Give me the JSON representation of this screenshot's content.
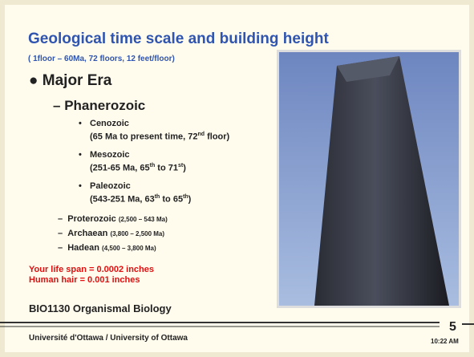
{
  "slide": {
    "title": "Geological time scale and building height",
    "subtitle": "( 1floor – 60Ma, 72 floors, 12 feet/floor)",
    "heading": "Major Era",
    "eon": "Phanerozoic",
    "eras": [
      {
        "name": "Cenozoic",
        "detail": [
          "(65 Ma to present time, 72",
          "nd",
          " floor)"
        ]
      },
      {
        "name": "Mesozoic",
        "detail": [
          "(251-65 Ma, 65",
          "th",
          " to 71",
          "st",
          ")"
        ]
      },
      {
        "name": "Paleozoic",
        "detail": [
          "(543-251 Ma, 63",
          "th",
          " to 65",
          "th",
          ")"
        ]
      }
    ],
    "other_eons": [
      {
        "name": "Proterozoic",
        "range": "(2,500 – 543 Ma)"
      },
      {
        "name": "Archaean",
        "range": "(3,800 – 2,500 Ma)"
      },
      {
        "name": "Hadean",
        "range": "(4,500 – 3,800 Ma)"
      }
    ],
    "notes": [
      "Your life span = 0.0002 inches",
      "Human hair = 0.001 inches"
    ],
    "course": "BIO1130 Organismal Biology",
    "footer": "Université d'Ottawa / University of Ottawa",
    "page_number": "5",
    "time": "10:22 AM"
  }
}
